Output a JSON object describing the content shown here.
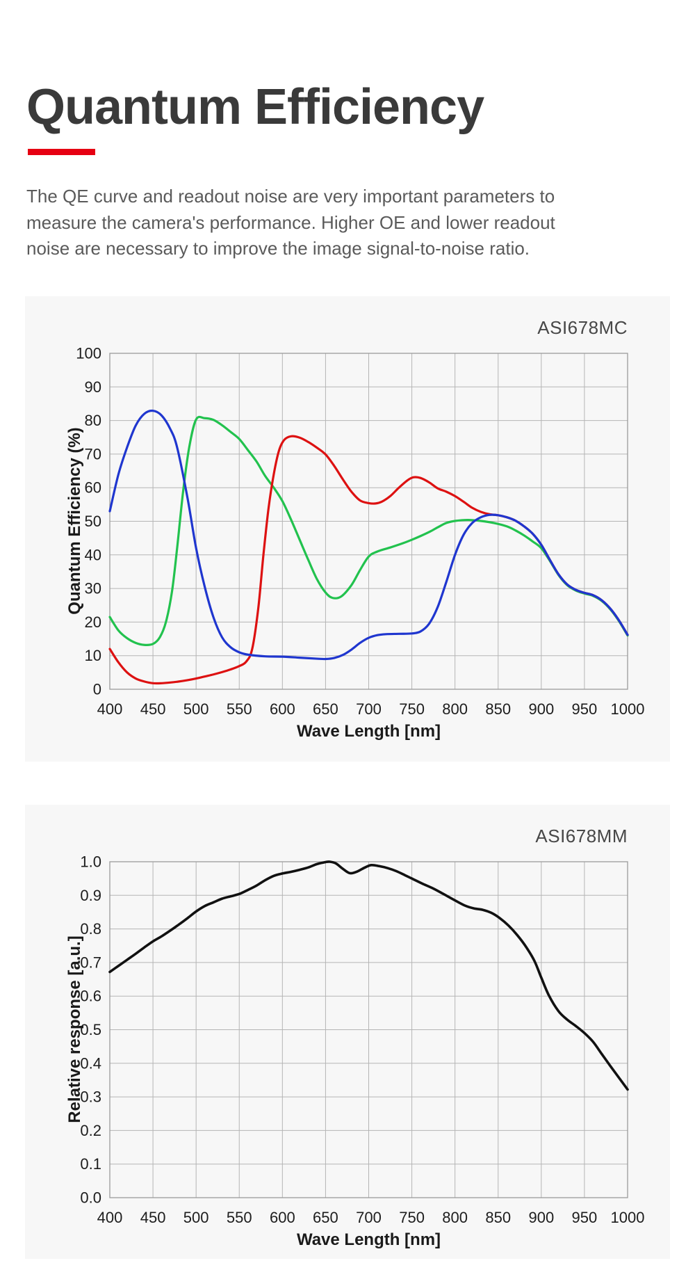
{
  "page": {
    "title": "Quantum Efficiency",
    "intro": "The QE curve and readout noise are very important parameters to measure the camera's performance. Higher OE and lower readout noise are necessary to improve the image signal-to-noise ratio.",
    "accent_color": "#e60012",
    "panel_background": "#f7f7f7",
    "grid_color": "#b5b5b5",
    "frame_color": "#9b9b9b"
  },
  "chart_data": [
    {
      "type": "line",
      "title": "ASI678MC",
      "xlabel": "Wave Length [nm]",
      "ylabel": "Quantum Efficiency (%)",
      "xlim": [
        400,
        1000
      ],
      "ylim": [
        0,
        100
      ],
      "grid": true,
      "legend": "none",
      "x_ticks": [
        "400",
        "450",
        "500",
        "550",
        "600",
        "650",
        "700",
        "750",
        "800",
        "850",
        "900",
        "950",
        "1000"
      ],
      "y_ticks": [
        "0",
        "10",
        "20",
        "30",
        "40",
        "50",
        "60",
        "70",
        "80",
        "90",
        "100"
      ],
      "series": [
        {
          "name": "green-channel",
          "color": "#22c24e",
          "points": [
            [
              400,
              21.5
            ],
            [
              410,
              17.5
            ],
            [
              420,
              15.2
            ],
            [
              430,
              13.8
            ],
            [
              440,
              13.2
            ],
            [
              450,
              13.5
            ],
            [
              458,
              15.5
            ],
            [
              465,
              20
            ],
            [
              472,
              29
            ],
            [
              478,
              42
            ],
            [
              485,
              59
            ],
            [
              492,
              72
            ],
            [
              500,
              80.3
            ],
            [
              510,
              80.7
            ],
            [
              520,
              80.2
            ],
            [
              530,
              78.6
            ],
            [
              540,
              76.6
            ],
            [
              550,
              74.5
            ],
            [
              560,
              71.2
            ],
            [
              570,
              67.8
            ],
            [
              580,
              63.5
            ],
            [
              590,
              60
            ],
            [
              600,
              56
            ],
            [
              610,
              50.5
            ],
            [
              620,
              44.5
            ],
            [
              630,
              38.5
            ],
            [
              640,
              32.8
            ],
            [
              650,
              28.8
            ],
            [
              658,
              27.2
            ],
            [
              668,
              27.6
            ],
            [
              680,
              31
            ],
            [
              690,
              35.5
            ],
            [
              700,
              39.5
            ],
            [
              710,
              41
            ],
            [
              725,
              42.2
            ],
            [
              740,
              43.5
            ],
            [
              750,
              44.5
            ],
            [
              760,
              45.6
            ],
            [
              770,
              46.8
            ],
            [
              780,
              48.2
            ],
            [
              790,
              49.5
            ],
            [
              800,
              50.1
            ],
            [
              815,
              50.4
            ],
            [
              830,
              50.1
            ],
            [
              845,
              49.5
            ],
            [
              860,
              48.5
            ],
            [
              870,
              47.3
            ],
            [
              880,
              45.8
            ],
            [
              890,
              44
            ],
            [
              900,
              42
            ],
            [
              910,
              38.2
            ],
            [
              920,
              34
            ],
            [
              930,
              31
            ],
            [
              940,
              29.4
            ],
            [
              950,
              28.5
            ],
            [
              960,
              27.8
            ],
            [
              970,
              26.3
            ],
            [
              980,
              23.8
            ],
            [
              990,
              20.3
            ],
            [
              1000,
              16
            ]
          ]
        },
        {
          "name": "red-channel",
          "color": "#dd1111",
          "points": [
            [
              400,
              12
            ],
            [
              410,
              8
            ],
            [
              420,
              5
            ],
            [
              430,
              3.2
            ],
            [
              440,
              2.3
            ],
            [
              450,
              1.8
            ],
            [
              460,
              1.8
            ],
            [
              470,
              2
            ],
            [
              480,
              2.3
            ],
            [
              490,
              2.7
            ],
            [
              500,
              3.2
            ],
            [
              510,
              3.8
            ],
            [
              520,
              4.4
            ],
            [
              530,
              5.1
            ],
            [
              540,
              5.9
            ],
            [
              550,
              6.9
            ],
            [
              558,
              8.2
            ],
            [
              565,
              12
            ],
            [
              572,
              24
            ],
            [
              578,
              40
            ],
            [
              584,
              54
            ],
            [
              590,
              64
            ],
            [
              596,
              71
            ],
            [
              602,
              74.2
            ],
            [
              610,
              75.3
            ],
            [
              620,
              74.9
            ],
            [
              630,
              73.6
            ],
            [
              640,
              71.9
            ],
            [
              650,
              69.9
            ],
            [
              660,
              66.5
            ],
            [
              670,
              62.5
            ],
            [
              680,
              58.8
            ],
            [
              690,
              56.2
            ],
            [
              700,
              55.4
            ],
            [
              708,
              55.3
            ],
            [
              715,
              55.8
            ],
            [
              725,
              57.5
            ],
            [
              735,
              60
            ],
            [
              745,
              62.2
            ],
            [
              752,
              63.1
            ],
            [
              760,
              62.9
            ],
            [
              770,
              61.6
            ],
            [
              780,
              59.8
            ],
            [
              790,
              58.8
            ],
            [
              800,
              57.5
            ],
            [
              810,
              55.8
            ],
            [
              820,
              54
            ],
            [
              830,
              52.8
            ],
            [
              840,
              52.1
            ],
            [
              850,
              51.8
            ],
            [
              860,
              51.2
            ],
            [
              870,
              50.2
            ],
            [
              880,
              48.5
            ],
            [
              890,
              46.3
            ],
            [
              900,
              43
            ],
            [
              910,
              38.5
            ],
            [
              920,
              34.2
            ],
            [
              930,
              31.2
            ],
            [
              940,
              29.6
            ],
            [
              950,
              28.7
            ],
            [
              960,
              28
            ],
            [
              970,
              26.5
            ],
            [
              980,
              24
            ],
            [
              990,
              20.5
            ],
            [
              1000,
              16.2
            ]
          ]
        },
        {
          "name": "blue-channel",
          "color": "#1f36cf",
          "points": [
            [
              400,
              53
            ],
            [
              410,
              64
            ],
            [
              420,
              72
            ],
            [
              430,
              78.5
            ],
            [
              440,
              82
            ],
            [
              450,
              82.9
            ],
            [
              460,
              81.5
            ],
            [
              470,
              77.5
            ],
            [
              478,
              72
            ],
            [
              490,
              57
            ],
            [
              500,
              42
            ],
            [
              510,
              30.5
            ],
            [
              520,
              21.5
            ],
            [
              530,
              15.5
            ],
            [
              540,
              12.5
            ],
            [
              550,
              11
            ],
            [
              560,
              10.3
            ],
            [
              580,
              9.8
            ],
            [
              600,
              9.7
            ],
            [
              620,
              9.4
            ],
            [
              640,
              9.1
            ],
            [
              650,
              9
            ],
            [
              660,
              9.3
            ],
            [
              670,
              10.2
            ],
            [
              680,
              11.8
            ],
            [
              690,
              13.8
            ],
            [
              700,
              15.3
            ],
            [
              710,
              16.1
            ],
            [
              720,
              16.4
            ],
            [
              735,
              16.5
            ],
            [
              750,
              16.6
            ],
            [
              760,
              17.2
            ],
            [
              770,
              19.5
            ],
            [
              780,
              24.5
            ],
            [
              790,
              32
            ],
            [
              800,
              40
            ],
            [
              810,
              46
            ],
            [
              820,
              49.5
            ],
            [
              830,
              51.2
            ],
            [
              840,
              51.9
            ],
            [
              850,
              51.8
            ],
            [
              860,
              51.2
            ],
            [
              870,
              50.2
            ],
            [
              880,
              48.5
            ],
            [
              890,
              46.3
            ],
            [
              900,
              43
            ],
            [
              910,
              38.5
            ],
            [
              920,
              34.2
            ],
            [
              930,
              31.2
            ],
            [
              940,
              29.6
            ],
            [
              950,
              28.7
            ],
            [
              960,
              28
            ],
            [
              970,
              26.5
            ],
            [
              980,
              24
            ],
            [
              990,
              20.5
            ],
            [
              1000,
              16.2
            ]
          ]
        }
      ]
    },
    {
      "type": "line",
      "title": "ASI678MM",
      "xlabel": "Wave Length [nm]",
      "ylabel": "Relative response [a.u.]",
      "xlim": [
        400,
        1000
      ],
      "ylim": [
        0,
        1
      ],
      "grid": true,
      "legend": "none",
      "x_ticks": [
        "400",
        "450",
        "500",
        "550",
        "600",
        "650",
        "700",
        "750",
        "800",
        "850",
        "900",
        "950",
        "1000"
      ],
      "y_ticks": [
        "0.0",
        "0.1",
        "0.2",
        "0.3",
        "0.4",
        "0.5",
        "0.6",
        "0.7",
        "0.8",
        "0.9",
        "1.0"
      ],
      "series": [
        {
          "name": "mono",
          "color": "#111111",
          "points": [
            [
              400,
              0.672
            ],
            [
              410,
              0.69
            ],
            [
              420,
              0.708
            ],
            [
              430,
              0.726
            ],
            [
              440,
              0.745
            ],
            [
              450,
              0.763
            ],
            [
              460,
              0.778
            ],
            [
              470,
              0.795
            ],
            [
              480,
              0.813
            ],
            [
              490,
              0.832
            ],
            [
              500,
              0.852
            ],
            [
              510,
              0.868
            ],
            [
              520,
              0.879
            ],
            [
              530,
              0.89
            ],
            [
              540,
              0.897
            ],
            [
              550,
              0.904
            ],
            [
              560,
              0.916
            ],
            [
              570,
              0.929
            ],
            [
              580,
              0.945
            ],
            [
              590,
              0.958
            ],
            [
              600,
              0.965
            ],
            [
              610,
              0.97
            ],
            [
              620,
              0.976
            ],
            [
              630,
              0.983
            ],
            [
              640,
              0.993
            ],
            [
              650,
              0.999
            ],
            [
              655,
              1.0
            ],
            [
              662,
              0.995
            ],
            [
              670,
              0.979
            ],
            [
              678,
              0.966
            ],
            [
              686,
              0.97
            ],
            [
              695,
              0.982
            ],
            [
              703,
              0.99
            ],
            [
              712,
              0.987
            ],
            [
              722,
              0.981
            ],
            [
              732,
              0.972
            ],
            [
              742,
              0.96
            ],
            [
              750,
              0.95
            ],
            [
              762,
              0.935
            ],
            [
              775,
              0.92
            ],
            [
              788,
              0.902
            ],
            [
              800,
              0.885
            ],
            [
              812,
              0.869
            ],
            [
              822,
              0.861
            ],
            [
              832,
              0.857
            ],
            [
              842,
              0.848
            ],
            [
              852,
              0.832
            ],
            [
              862,
              0.81
            ],
            [
              872,
              0.782
            ],
            [
              882,
              0.748
            ],
            [
              892,
              0.705
            ],
            [
              900,
              0.655
            ],
            [
              909,
              0.601
            ],
            [
              920,
              0.555
            ],
            [
              930,
              0.53
            ],
            [
              940,
              0.511
            ],
            [
              950,
              0.49
            ],
            [
              960,
              0.464
            ],
            [
              970,
              0.428
            ],
            [
              980,
              0.392
            ],
            [
              990,
              0.357
            ],
            [
              1000,
              0.322
            ]
          ]
        }
      ]
    }
  ]
}
